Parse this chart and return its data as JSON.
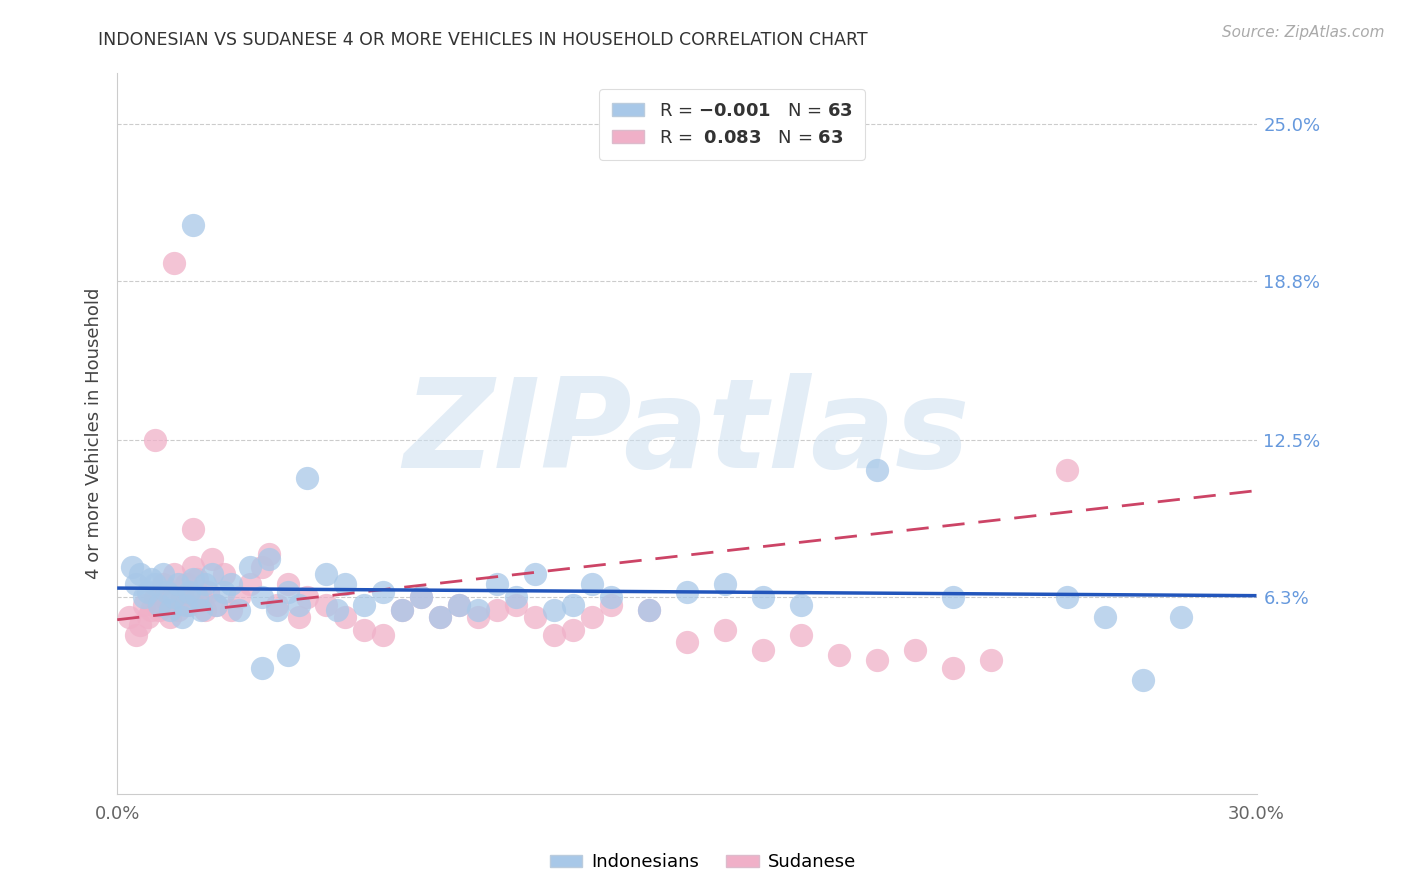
{
  "title": "INDONESIAN VS SUDANESE 4 OR MORE VEHICLES IN HOUSEHOLD CORRELATION CHART",
  "source": "Source: ZipAtlas.com",
  "ylabel": "4 or more Vehicles in Household",
  "watermark": "ZIPatlas",
  "xlim": [
    0.0,
    0.3
  ],
  "ylim": [
    -0.015,
    0.27
  ],
  "xtick_positions": [
    0.0,
    0.075,
    0.15,
    0.225,
    0.3
  ],
  "xtick_labels": [
    "0.0%",
    "",
    "",
    "",
    "30.0%"
  ],
  "ytick_labels_right": [
    "25.0%",
    "18.8%",
    "12.5%",
    "6.3%"
  ],
  "ytick_values_right": [
    0.25,
    0.188,
    0.125,
    0.063
  ],
  "legend_N_indonesian": "63",
  "legend_R_sudanese": "0.083",
  "legend_N_sudanese": "63",
  "indonesian_color": "#a8c8e8",
  "sudanese_color": "#f0b0c8",
  "indonesian_line_color": "#2255bb",
  "sudanese_line_color": "#cc4466",
  "indonesian_x": [
    0.004,
    0.005,
    0.006,
    0.007,
    0.008,
    0.009,
    0.01,
    0.011,
    0.012,
    0.013,
    0.014,
    0.015,
    0.016,
    0.017,
    0.018,
    0.019,
    0.02,
    0.021,
    0.022,
    0.023,
    0.025,
    0.026,
    0.028,
    0.03,
    0.032,
    0.035,
    0.038,
    0.04,
    0.042,
    0.045,
    0.048,
    0.05,
    0.055,
    0.058,
    0.06,
    0.065,
    0.07,
    0.075,
    0.08,
    0.085,
    0.09,
    0.095,
    0.1,
    0.105,
    0.11,
    0.115,
    0.12,
    0.125,
    0.13,
    0.14,
    0.15,
    0.16,
    0.17,
    0.18,
    0.2,
    0.22,
    0.25,
    0.26,
    0.27,
    0.28,
    0.038,
    0.045,
    0.02
  ],
  "indonesian_y": [
    0.075,
    0.068,
    0.072,
    0.063,
    0.065,
    0.07,
    0.068,
    0.06,
    0.072,
    0.065,
    0.058,
    0.063,
    0.068,
    0.055,
    0.06,
    0.065,
    0.07,
    0.063,
    0.058,
    0.068,
    0.072,
    0.06,
    0.065,
    0.068,
    0.058,
    0.075,
    0.063,
    0.078,
    0.058,
    0.065,
    0.06,
    0.11,
    0.072,
    0.058,
    0.068,
    0.06,
    0.065,
    0.058,
    0.063,
    0.055,
    0.06,
    0.058,
    0.068,
    0.063,
    0.072,
    0.058,
    0.06,
    0.068,
    0.063,
    0.058,
    0.065,
    0.068,
    0.063,
    0.06,
    0.113,
    0.063,
    0.063,
    0.055,
    0.03,
    0.055,
    0.035,
    0.04,
    0.21
  ],
  "sudanese_x": [
    0.003,
    0.005,
    0.006,
    0.007,
    0.008,
    0.009,
    0.01,
    0.011,
    0.012,
    0.013,
    0.014,
    0.015,
    0.016,
    0.017,
    0.018,
    0.019,
    0.02,
    0.021,
    0.022,
    0.023,
    0.024,
    0.025,
    0.026,
    0.028,
    0.03,
    0.032,
    0.035,
    0.038,
    0.04,
    0.042,
    0.045,
    0.048,
    0.05,
    0.055,
    0.06,
    0.065,
    0.07,
    0.075,
    0.08,
    0.085,
    0.09,
    0.095,
    0.1,
    0.105,
    0.11,
    0.115,
    0.12,
    0.125,
    0.13,
    0.14,
    0.15,
    0.16,
    0.17,
    0.18,
    0.19,
    0.2,
    0.21,
    0.22,
    0.23,
    0.25,
    0.01,
    0.015,
    0.02
  ],
  "sudanese_y": [
    0.055,
    0.048,
    0.052,
    0.06,
    0.055,
    0.058,
    0.063,
    0.058,
    0.068,
    0.062,
    0.055,
    0.072,
    0.058,
    0.063,
    0.068,
    0.06,
    0.075,
    0.07,
    0.063,
    0.058,
    0.065,
    0.078,
    0.06,
    0.072,
    0.058,
    0.063,
    0.068,
    0.075,
    0.08,
    0.06,
    0.068,
    0.055,
    0.063,
    0.06,
    0.055,
    0.05,
    0.048,
    0.058,
    0.063,
    0.055,
    0.06,
    0.055,
    0.058,
    0.06,
    0.055,
    0.048,
    0.05,
    0.055,
    0.06,
    0.058,
    0.045,
    0.05,
    0.042,
    0.048,
    0.04,
    0.038,
    0.042,
    0.035,
    0.038,
    0.113,
    0.125,
    0.195,
    0.09
  ],
  "indo_line_x": [
    0.0,
    0.3
  ],
  "indo_line_y": [
    0.0665,
    0.0635
  ],
  "sud_line_x": [
    0.0,
    0.3
  ],
  "sud_line_y": [
    0.054,
    0.105
  ]
}
